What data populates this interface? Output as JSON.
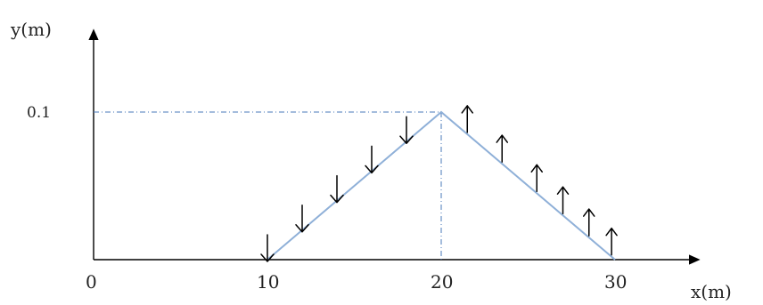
{
  "axes": {
    "y_label": "y(m)",
    "x_label": "x(m)",
    "origin_label": "0",
    "y_tick_label": "0.1",
    "x_tick_labels": [
      "10",
      "20",
      "30"
    ]
  },
  "wave": {
    "points": [
      {
        "x": 10,
        "y": 0
      },
      {
        "x": 20,
        "y": 0.1
      },
      {
        "x": 30,
        "y": 0
      }
    ],
    "velocity_arrows": [
      {
        "x": 10,
        "dir": "down"
      },
      {
        "x": 12,
        "dir": "down"
      },
      {
        "x": 14,
        "dir": "down"
      },
      {
        "x": 16,
        "dir": "down"
      },
      {
        "x": 18,
        "dir": "down"
      },
      {
        "x": 21.5,
        "dir": "up"
      },
      {
        "x": 23.5,
        "dir": "up"
      },
      {
        "x": 25.5,
        "dir": "up"
      },
      {
        "x": 27,
        "dir": "up"
      },
      {
        "x": 28.5,
        "dir": "up"
      },
      {
        "x": 29.8,
        "dir": "up"
      }
    ]
  },
  "colors": {
    "wave": "#8fb0d8",
    "guide": "#4a78b8",
    "axis": "#000000"
  }
}
